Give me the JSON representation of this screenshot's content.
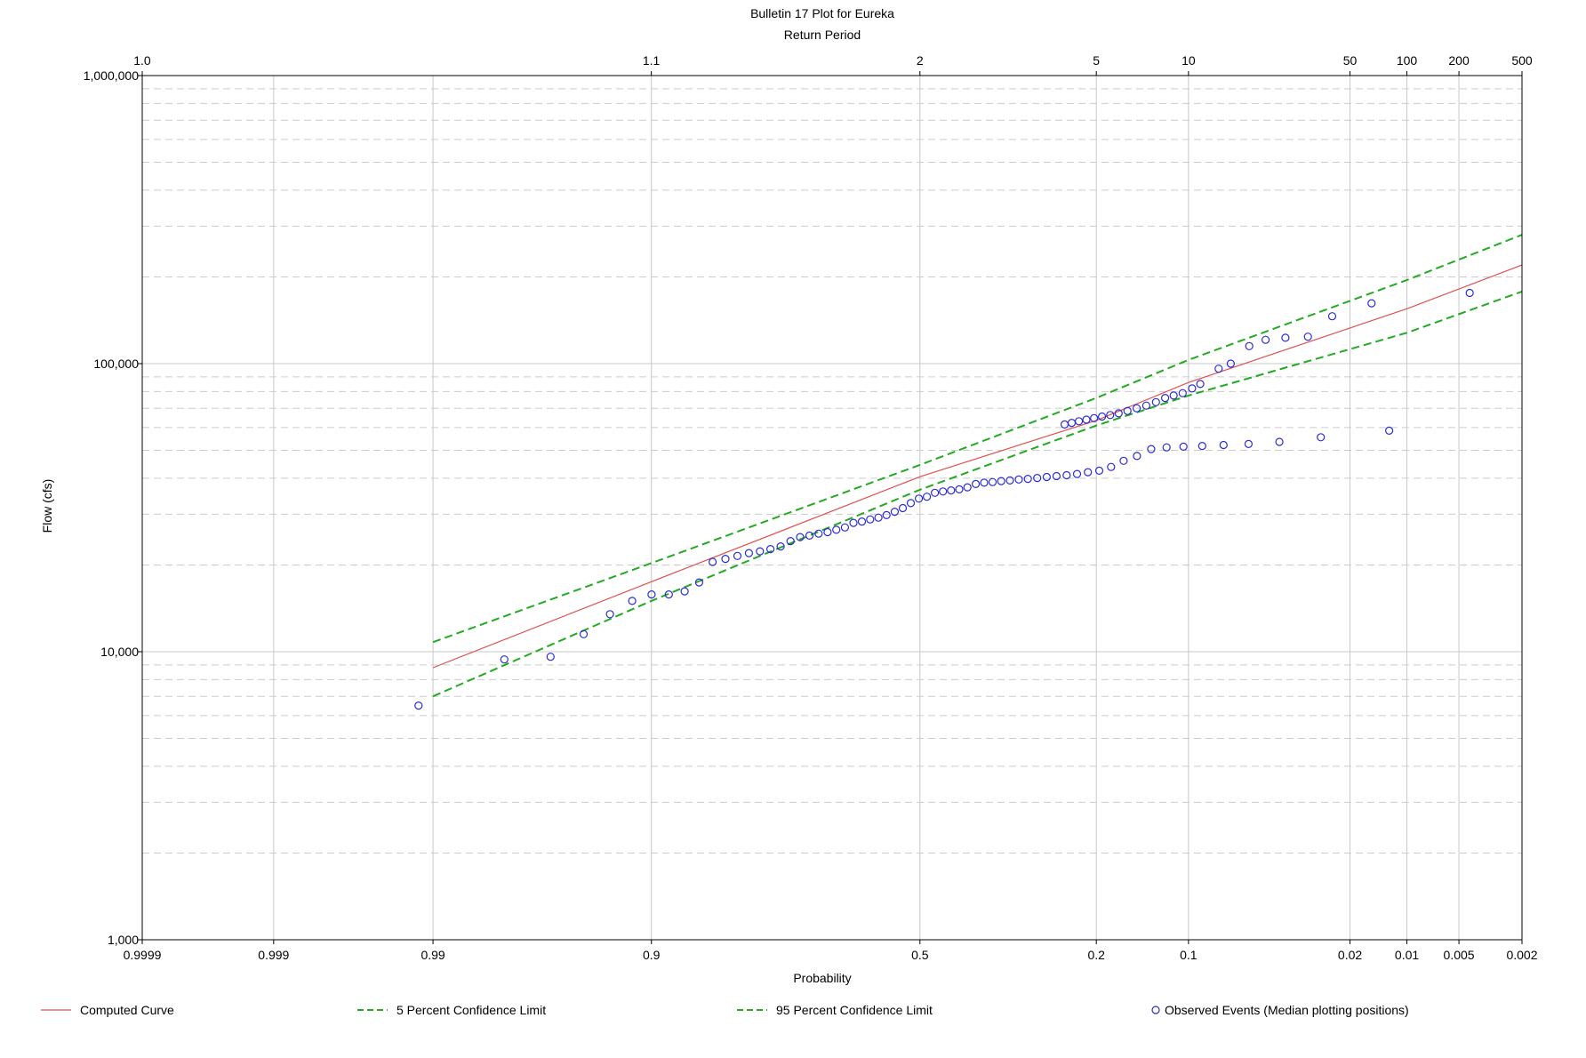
{
  "chart_data": {
    "type": "scatter",
    "title": "Bulletin 17 Plot for Eureka",
    "top_axis_label": "Return Period",
    "xlabel": "Probability",
    "ylabel": "Flow (cfs)",
    "x_scale": "normal-probability",
    "y_scale": "log",
    "ylim": [
      1000,
      1000000
    ],
    "xlim": [
      0.9999,
      0.002
    ],
    "grid": true,
    "legend_position": "bottom",
    "x_ticks": [
      {
        "value": 0.9999,
        "label": "0.9999"
      },
      {
        "value": 0.999,
        "label": "0.999"
      },
      {
        "value": 0.99,
        "label": "0.99"
      },
      {
        "value": 0.9,
        "label": "0.9"
      },
      {
        "value": 0.5,
        "label": "0.5"
      },
      {
        "value": 0.2,
        "label": "0.2"
      },
      {
        "value": 0.1,
        "label": "0.1"
      },
      {
        "value": 0.02,
        "label": "0.02"
      },
      {
        "value": 0.01,
        "label": "0.01"
      },
      {
        "value": 0.005,
        "label": "0.005"
      },
      {
        "value": 0.002,
        "label": "0.002"
      }
    ],
    "top_ticks": [
      {
        "value": 1.0001,
        "label": "1.0"
      },
      {
        "value": 1.111,
        "label": "1.1"
      },
      {
        "value": 2,
        "label": "2"
      },
      {
        "value": 5,
        "label": "5"
      },
      {
        "value": 10,
        "label": "10"
      },
      {
        "value": 50,
        "label": "50"
      },
      {
        "value": 100,
        "label": "100"
      },
      {
        "value": 200,
        "label": "200"
      },
      {
        "value": 500,
        "label": "500"
      }
    ],
    "y_ticks": [
      {
        "value": 1000,
        "label": "1,000"
      },
      {
        "value": 10000,
        "label": "10,000"
      },
      {
        "value": 100000,
        "label": "100,000"
      },
      {
        "value": 1000000,
        "label": "1,000,000"
      }
    ],
    "series": [
      {
        "name": "Computed Curve",
        "kind": "line",
        "color": "#e05050",
        "dashed": false,
        "points": [
          [
            0.99,
            8800
          ],
          [
            0.9,
            17500
          ],
          [
            0.5,
            40500
          ],
          [
            0.2,
            63500
          ],
          [
            0.1,
            86000
          ],
          [
            0.01,
            155000
          ],
          [
            0.002,
            220000
          ]
        ]
      },
      {
        "name": "5 Percent Confidence Limit",
        "kind": "line",
        "color": "#22aa22",
        "dashed": true,
        "points": [
          [
            0.99,
            10800
          ],
          [
            0.9,
            20300
          ],
          [
            0.5,
            44500
          ],
          [
            0.2,
            76000
          ],
          [
            0.1,
            103000
          ],
          [
            0.01,
            195000
          ],
          [
            0.002,
            280000
          ]
        ]
      },
      {
        "name": "95 Percent Confidence Limit",
        "kind": "line",
        "color": "#22aa22",
        "dashed": true,
        "points": [
          [
            0.99,
            7000
          ],
          [
            0.9,
            15000
          ],
          [
            0.5,
            36500
          ],
          [
            0.2,
            61000
          ],
          [
            0.1,
            77500
          ],
          [
            0.01,
            128000
          ],
          [
            0.002,
            178000
          ]
        ]
      },
      {
        "name": "Observed Events (Median plotting positions)",
        "kind": "markers",
        "color": "#2b2bd6",
        "points": [
          [
            0.9917,
            6500
          ],
          [
            0.9764,
            9400
          ],
          [
            0.9611,
            9600
          ],
          [
            0.9458,
            11500
          ],
          [
            0.9305,
            13500
          ],
          [
            0.9152,
            15000
          ],
          [
            0.8999,
            15800
          ],
          [
            0.8846,
            15800
          ],
          [
            0.8693,
            16200
          ],
          [
            0.854,
            17400
          ],
          [
            0.8387,
            20500
          ],
          [
            0.8234,
            21000
          ],
          [
            0.8081,
            21500
          ],
          [
            0.7928,
            22000
          ],
          [
            0.7775,
            22300
          ],
          [
            0.7622,
            22700
          ],
          [
            0.7469,
            23200
          ],
          [
            0.7316,
            24200
          ],
          [
            0.7163,
            25000
          ],
          [
            0.701,
            25300
          ],
          [
            0.6857,
            25700
          ],
          [
            0.6704,
            26000
          ],
          [
            0.6551,
            26500
          ],
          [
            0.6398,
            27000
          ],
          [
            0.6245,
            28000
          ],
          [
            0.6092,
            28300
          ],
          [
            0.5939,
            28800
          ],
          [
            0.5786,
            29200
          ],
          [
            0.5633,
            29800
          ],
          [
            0.548,
            30600
          ],
          [
            0.5327,
            31500
          ],
          [
            0.5174,
            32800
          ],
          [
            0.5021,
            34000
          ],
          [
            0.4868,
            34500
          ],
          [
            0.4715,
            35600
          ],
          [
            0.4562,
            36000
          ],
          [
            0.4409,
            36300
          ],
          [
            0.4256,
            36600
          ],
          [
            0.4103,
            37200
          ],
          [
            0.395,
            38200
          ],
          [
            0.3797,
            38600
          ],
          [
            0.3644,
            38800
          ],
          [
            0.3491,
            39100
          ],
          [
            0.3338,
            39300
          ],
          [
            0.3185,
            39600
          ],
          [
            0.3032,
            39800
          ],
          [
            0.2879,
            40100
          ],
          [
            0.2726,
            40400
          ],
          [
            0.2573,
            40700
          ],
          [
            0.242,
            41000
          ],
          [
            0.2267,
            41400
          ],
          [
            0.2114,
            42000
          ],
          [
            0.1961,
            42500
          ],
          [
            0.1808,
            43800
          ],
          [
            0.1655,
            46000
          ],
          [
            0.1502,
            47800
          ],
          [
            0.1349,
            50500
          ],
          [
            0.1196,
            51200
          ],
          [
            0.1043,
            51500
          ],
          [
            0.089,
            51800
          ],
          [
            0.0737,
            52200
          ],
          [
            0.0584,
            52600
          ],
          [
            0.0431,
            53500
          ],
          [
            0.0278,
            55500
          ],
          [
            0.0125,
            58500
          ],
          [
            0.245,
            61500
          ],
          [
            0.2345,
            62300
          ],
          [
            0.224,
            63100
          ],
          [
            0.2135,
            63900
          ],
          [
            0.203,
            64700
          ],
          [
            0.1925,
            65500
          ],
          [
            0.182,
            66300
          ],
          [
            0.1715,
            67200
          ],
          [
            0.161,
            68500
          ],
          [
            0.1505,
            70000
          ],
          [
            0.14,
            71500
          ],
          [
            0.13,
            73500
          ],
          [
            0.121,
            76000
          ],
          [
            0.113,
            77500
          ],
          [
            0.105,
            79000
          ],
          [
            0.097,
            82000
          ],
          [
            0.0905,
            85000
          ],
          [
            0.077,
            96000
          ],
          [
            0.069,
            100000
          ],
          [
            0.058,
            115000
          ],
          [
            0.0495,
            121000
          ],
          [
            0.0405,
            123000
          ],
          [
            0.032,
            124000
          ],
          [
            0.0245,
            146000
          ],
          [
            0.0155,
            162000
          ],
          [
            0.0043,
            176000
          ]
        ]
      }
    ],
    "legend": [
      {
        "label": "Computed Curve",
        "style": "solid",
        "color": "#e05050"
      },
      {
        "label": "5 Percent Confidence Limit",
        "style": "dashed",
        "color": "#22aa22"
      },
      {
        "label": "95 Percent Confidence Limit",
        "style": "dashed",
        "color": "#22aa22"
      },
      {
        "label": "Observed Events (Median plotting positions)",
        "style": "circle",
        "color": "#2b2bd6"
      }
    ]
  }
}
